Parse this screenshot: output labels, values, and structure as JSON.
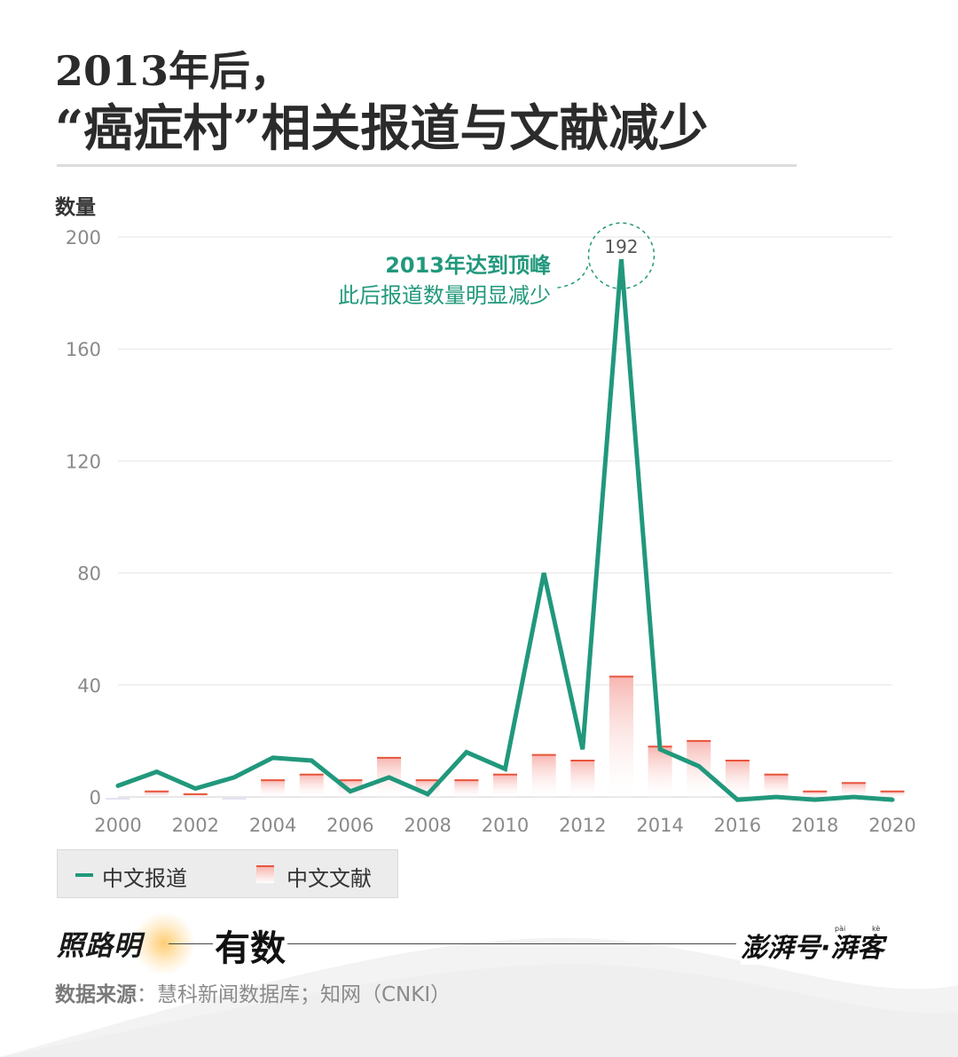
{
  "title": {
    "line1": "2013年后，",
    "line2": "“癌症村”相关报道与文献减少"
  },
  "colors": {
    "line": "#21987c",
    "bar_top": "#e8543c",
    "bar_fill": "#f7b7b2",
    "grid": "#e6e6e6",
    "axis_text": "#8a8a8a"
  },
  "chart_data": {
    "type": "bar",
    "ylabel": "数量",
    "ylim": [
      0,
      200
    ],
    "yticks": [
      0,
      40,
      80,
      120,
      160,
      200
    ],
    "x": [
      2000,
      2001,
      2002,
      2003,
      2004,
      2005,
      2006,
      2007,
      2008,
      2009,
      2010,
      2011,
      2012,
      2013,
      2014,
      2015,
      2016,
      2017,
      2018,
      2019,
      2020
    ],
    "xticks": [
      "2000",
      "2002",
      "2004",
      "2006",
      "2008",
      "2010",
      "2012",
      "2014",
      "2016",
      "2018",
      "2020"
    ],
    "grid": true,
    "series": [
      {
        "name": "中文报道",
        "type": "line",
        "values": [
          4,
          9,
          3,
          7,
          14,
          13,
          2,
          7,
          1,
          16,
          10,
          80,
          17,
          192,
          17,
          11,
          -1,
          0,
          -1,
          0,
          -1
        ]
      },
      {
        "name": "中文文献",
        "type": "bar",
        "values": [
          0,
          2,
          1,
          0,
          6,
          8,
          6,
          14,
          6,
          6,
          8,
          15,
          13,
          43,
          18,
          20,
          13,
          8,
          2,
          5,
          2
        ]
      }
    ],
    "annotation": {
      "value": "192",
      "line1": "2013年达到顶峰",
      "line2": "此后报道数量明显减少"
    }
  },
  "legend": {
    "line_label": "中文报道",
    "bar_label": "中文文献"
  },
  "brand": {
    "left": "照路明",
    "mid": "有数",
    "right": "澎湃号·湃客",
    "right_pinyin1": "pài",
    "right_pinyin2": "kè"
  },
  "source": {
    "label": "数据来源",
    "text": "：慧科新闻数据库；知网（CNKI）"
  }
}
